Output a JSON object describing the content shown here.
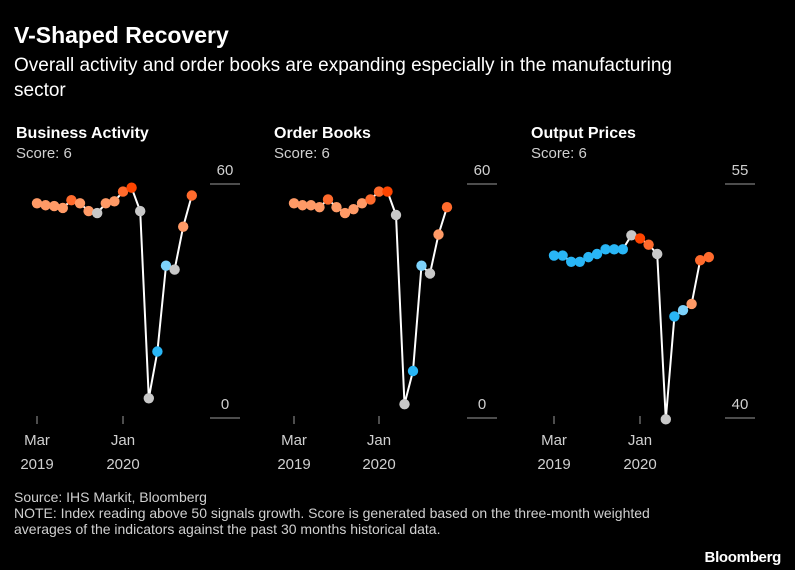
{
  "header": {
    "title": "V-Shaped Recovery",
    "subtitle": "Overall activity and order books are expanding especially in the manufacturing sector"
  },
  "footer": {
    "source": "Source: IHS Markit, Bloomberg",
    "note": "NOTE: Index reading above 50 signals growth. Score is generated based on the three-month weighted averages of the indicators against the past 30 months historical data."
  },
  "brand": "Bloomberg",
  "colors": {
    "background": "#000000",
    "line": "#ffffff",
    "neutral": "#c8c8c8",
    "light_orange": "#ff9a66",
    "orange": "#ff6b2d",
    "deep_orange": "#ff4500",
    "light_blue": "#7dd3fc",
    "blue": "#29b6f6"
  },
  "chart_data": [
    {
      "type": "line",
      "title": "Business Activity",
      "score_label": "Score: 6",
      "ylim": [
        0,
        60
      ],
      "y_ticks": [
        0,
        60
      ],
      "x_ticks": [
        {
          "label": "Mar",
          "sub": "2019",
          "index": 0
        },
        {
          "label": "Jan",
          "sub": "2020",
          "index": 10
        }
      ],
      "values": [
        53.0,
        52.5,
        52.3,
        51.8,
        53.8,
        53.0,
        51.0,
        50.5,
        53.0,
        53.5,
        56.0,
        57.0,
        51.0,
        3.0,
        15.0,
        37.0,
        36.0,
        47.0,
        55.0
      ],
      "colors": [
        "light_orange",
        "light_orange",
        "light_orange",
        "light_orange",
        "orange",
        "light_orange",
        "light_orange",
        "neutral",
        "light_orange",
        "light_orange",
        "orange",
        "deep_orange",
        "neutral",
        "neutral",
        "blue",
        "light_blue",
        "neutral",
        "light_orange",
        "orange"
      ]
    },
    {
      "type": "line",
      "title": "Order Books",
      "score_label": "Score: 6",
      "ylim": [
        0,
        60
      ],
      "y_ticks": [
        0,
        60
      ],
      "x_ticks": [
        {
          "label": "Mar",
          "sub": "2019",
          "index": 0
        },
        {
          "label": "Jan",
          "sub": "2020",
          "index": 10
        }
      ],
      "values": [
        53.0,
        52.5,
        52.5,
        52.0,
        54.0,
        52.0,
        50.5,
        51.5,
        53.0,
        54.0,
        56.0,
        56.0,
        50.0,
        1.5,
        10.0,
        37.0,
        35.0,
        45.0,
        52.0
      ],
      "colors": [
        "light_orange",
        "light_orange",
        "light_orange",
        "light_orange",
        "orange",
        "light_orange",
        "light_orange",
        "light_orange",
        "light_orange",
        "orange",
        "orange",
        "deep_orange",
        "neutral",
        "neutral",
        "blue",
        "light_blue",
        "neutral",
        "light_orange",
        "orange"
      ]
    },
    {
      "type": "line",
      "title": "Output Prices",
      "score_label": "Score: 6",
      "ylim": [
        40,
        55
      ],
      "y_ticks": [
        40,
        55
      ],
      "x_ticks": [
        {
          "label": "Mar",
          "sub": "2019",
          "index": 0
        },
        {
          "label": "Jan",
          "sub": "2020",
          "index": 10
        }
      ],
      "values": [
        49.9,
        49.9,
        49.5,
        49.5,
        49.8,
        50.0,
        50.3,
        50.3,
        50.3,
        51.2,
        51.0,
        50.6,
        50.0,
        39.4,
        46.0,
        46.4,
        46.8,
        49.6,
        49.8
      ],
      "colors": [
        "blue",
        "blue",
        "blue",
        "blue",
        "blue",
        "blue",
        "blue",
        "blue",
        "blue",
        "neutral",
        "deep_orange",
        "orange",
        "neutral",
        "neutral",
        "blue",
        "light_blue",
        "light_orange",
        "orange",
        "orange"
      ]
    }
  ]
}
